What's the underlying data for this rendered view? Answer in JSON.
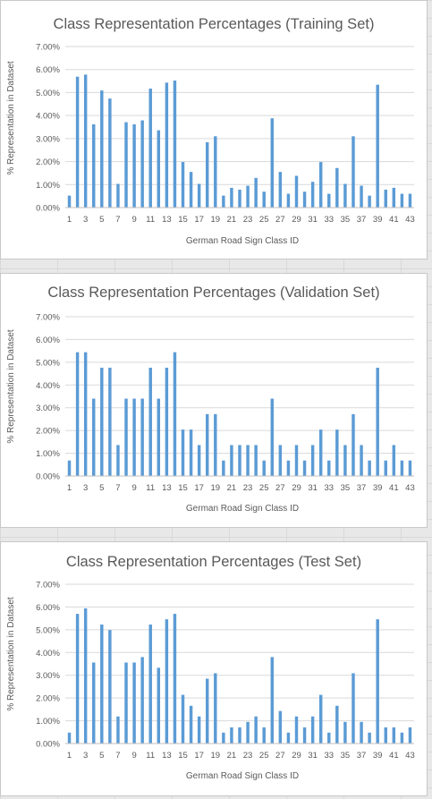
{
  "colors": {
    "bar": "#5b9bd5",
    "grid": "#d9d9d9",
    "axis": "#bfbfbf",
    "text": "#595959"
  },
  "chart_data": [
    {
      "type": "bar",
      "title": "Class Representation Percentages (Training Set)",
      "xlabel": "German Road Sign Class ID",
      "ylabel": "% Representation in Dataset",
      "ylim": [
        0,
        7
      ],
      "yticks": [
        "0.00%",
        "1.00%",
        "2.00%",
        "3.00%",
        "4.00%",
        "5.00%",
        "6.00%",
        "7.00%"
      ],
      "categories": [
        "1",
        "2",
        "3",
        "4",
        "5",
        "6",
        "7",
        "8",
        "9",
        "10",
        "11",
        "12",
        "13",
        "14",
        "15",
        "16",
        "17",
        "18",
        "19",
        "20",
        "21",
        "22",
        "23",
        "24",
        "25",
        "26",
        "27",
        "28",
        "29",
        "30",
        "31",
        "32",
        "33",
        "34",
        "35",
        "36",
        "37",
        "38",
        "39",
        "40",
        "41",
        "42",
        "43"
      ],
      "xtick_labels": [
        "1",
        "3",
        "5",
        "7",
        "9",
        "11",
        "13",
        "15",
        "17",
        "19",
        "21",
        "23",
        "25",
        "27",
        "29",
        "31",
        "33",
        "35",
        "37",
        "39",
        "41",
        "43"
      ],
      "values": [
        0.52,
        5.69,
        5.78,
        3.62,
        5.09,
        4.74,
        1.03,
        3.71,
        3.62,
        3.79,
        5.17,
        3.36,
        5.43,
        5.52,
        1.98,
        1.55,
        1.03,
        2.84,
        3.1,
        0.52,
        0.86,
        0.78,
        0.95,
        1.29,
        0.69,
        3.88,
        1.55,
        0.6,
        1.38,
        0.69,
        1.12,
        1.98,
        0.6,
        1.72,
        1.03,
        3.1,
        0.95,
        0.52,
        5.34,
        0.78,
        0.86,
        0.6,
        0.6
      ]
    },
    {
      "type": "bar",
      "title": "Class Representation Percentages (Validation Set)",
      "xlabel": "German Road Sign Class ID",
      "ylabel": "% Representation in Dataset",
      "ylim": [
        0,
        7
      ],
      "yticks": [
        "0.00%",
        "1.00%",
        "2.00%",
        "3.00%",
        "4.00%",
        "5.00%",
        "6.00%",
        "7.00%"
      ],
      "categories": [
        "1",
        "2",
        "3",
        "4",
        "5",
        "6",
        "7",
        "8",
        "9",
        "10",
        "11",
        "12",
        "13",
        "14",
        "15",
        "16",
        "17",
        "18",
        "19",
        "20",
        "21",
        "22",
        "23",
        "24",
        "25",
        "26",
        "27",
        "28",
        "29",
        "30",
        "31",
        "32",
        "33",
        "34",
        "35",
        "36",
        "37",
        "38",
        "39",
        "40",
        "41",
        "42",
        "43"
      ],
      "xtick_labels": [
        "1",
        "3",
        "5",
        "7",
        "9",
        "11",
        "13",
        "15",
        "17",
        "19",
        "21",
        "23",
        "25",
        "27",
        "29",
        "31",
        "33",
        "35",
        "37",
        "39",
        "41",
        "43"
      ],
      "values": [
        0.68,
        5.44,
        5.44,
        3.4,
        4.76,
        4.76,
        1.36,
        3.4,
        3.4,
        3.4,
        4.76,
        3.4,
        4.76,
        5.44,
        2.04,
        2.04,
        1.36,
        2.72,
        2.72,
        0.68,
        1.36,
        1.36,
        1.36,
        1.36,
        0.68,
        3.4,
        1.36,
        0.68,
        1.36,
        0.68,
        1.36,
        2.04,
        0.68,
        2.04,
        1.36,
        2.72,
        1.36,
        0.68,
        4.76,
        0.68,
        1.36,
        0.68,
        0.68
      ]
    },
    {
      "type": "bar",
      "title": "Class Representation Percentages (Test Set)",
      "xlabel": "German Road Sign Class ID",
      "ylabel": "% Representation in Dataset",
      "ylim": [
        0,
        7
      ],
      "yticks": [
        "0.00%",
        "1.00%",
        "2.00%",
        "3.00%",
        "4.00%",
        "5.00%",
        "6.00%",
        "7.00%"
      ],
      "categories": [
        "1",
        "2",
        "3",
        "4",
        "5",
        "6",
        "7",
        "8",
        "9",
        "10",
        "11",
        "12",
        "13",
        "14",
        "15",
        "16",
        "17",
        "18",
        "19",
        "20",
        "21",
        "22",
        "23",
        "24",
        "25",
        "26",
        "27",
        "28",
        "29",
        "30",
        "31",
        "32",
        "33",
        "34",
        "35",
        "36",
        "37",
        "38",
        "39",
        "40",
        "41",
        "42",
        "43"
      ],
      "xtick_labels": [
        "1",
        "3",
        "5",
        "7",
        "9",
        "11",
        "13",
        "15",
        "17",
        "19",
        "21",
        "23",
        "25",
        "27",
        "29",
        "31",
        "33",
        "35",
        "37",
        "39",
        "41",
        "43"
      ],
      "values": [
        0.48,
        5.7,
        5.94,
        3.56,
        5.23,
        4.99,
        1.19,
        3.56,
        3.56,
        3.8,
        5.23,
        3.33,
        5.46,
        5.7,
        2.14,
        1.66,
        1.19,
        2.85,
        3.09,
        0.48,
        0.71,
        0.71,
        0.95,
        1.19,
        0.71,
        3.8,
        1.43,
        0.48,
        1.19,
        0.71,
        1.19,
        2.14,
        0.48,
        1.66,
        0.95,
        3.09,
        0.95,
        0.48,
        5.46,
        0.71,
        0.71,
        0.48,
        0.71
      ]
    }
  ]
}
